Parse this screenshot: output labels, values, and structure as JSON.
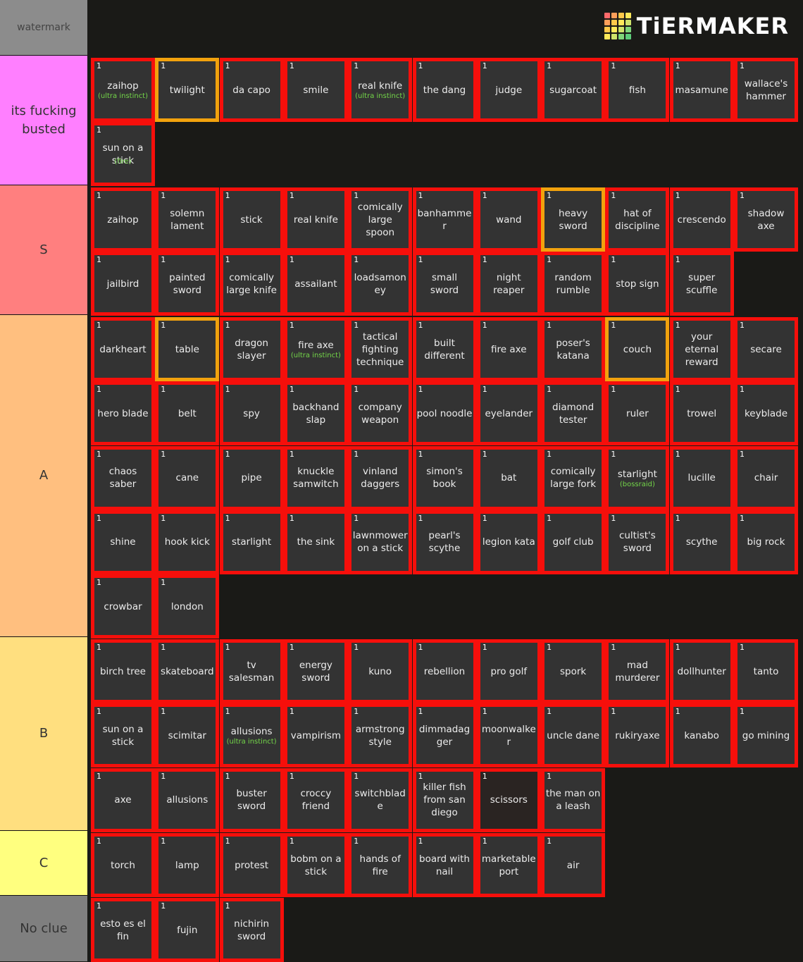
{
  "watermark": "watermark",
  "logo": {
    "text": "TiERMAKER",
    "icon": "tiermaker-grid-icon",
    "grid_colors": [
      "#ff6a6a",
      "#ff9f5a",
      "#ffc94a",
      "#ffe95a",
      "#ff9f5a",
      "#ffc94a",
      "#ffe95a",
      "#cfe36a",
      "#ffc94a",
      "#ffe95a",
      "#cfe36a",
      "#7fd67a",
      "#ffe95a",
      "#cfe36a",
      "#7fd67a",
      "#5ccc7a"
    ]
  },
  "colors": {
    "tile_border": "#f60f0b",
    "tile_gold": "#f2a20d",
    "tile_bg": "#333333",
    "sub_text": "#73d649"
  },
  "tiers": [
    {
      "label": "its fucking busted",
      "color": "#ff7fff",
      "items": [
        {
          "n": "1",
          "name": "zaihop",
          "sub": "(ultra instinct)"
        },
        {
          "n": "1",
          "name": "twilight",
          "gold": true
        },
        {
          "n": "1",
          "name": "da capo"
        },
        {
          "n": "1",
          "name": "smile"
        },
        {
          "n": "1",
          "name": "real knife",
          "sub": "(ultra instinct)"
        },
        {
          "n": "1",
          "name": "the dang"
        },
        {
          "n": "1",
          "name": "judge"
        },
        {
          "n": "1",
          "name": "sugarcoat"
        },
        {
          "n": "1",
          "name": "fish"
        },
        {
          "n": "1",
          "name": "masamune"
        },
        {
          "n": "1",
          "name": "wallace's hammer"
        },
        {
          "n": "1",
          "name": "sun on a stick",
          "ov": "(fire)"
        }
      ]
    },
    {
      "label": "S",
      "color": "#ff7f7f",
      "items": [
        {
          "n": "1",
          "name": "zaihop"
        },
        {
          "n": "1",
          "name": "solemn lament"
        },
        {
          "n": "1",
          "name": "stick"
        },
        {
          "n": "1",
          "name": "real knife"
        },
        {
          "n": "1",
          "name": "comically large spoon"
        },
        {
          "n": "1",
          "name": "banhammer"
        },
        {
          "n": "1",
          "name": "wand"
        },
        {
          "n": "1",
          "name": "heavy sword",
          "gold": true
        },
        {
          "n": "1",
          "name": "hat of discipline"
        },
        {
          "n": "1",
          "name": "crescendo"
        },
        {
          "n": "1",
          "name": "shadow axe"
        },
        {
          "n": "1",
          "name": "jailbird"
        },
        {
          "n": "1",
          "name": "painted sword"
        },
        {
          "n": "1",
          "name": "comically large knife"
        },
        {
          "n": "1",
          "name": "assailant"
        },
        {
          "n": "1",
          "name": "loadsamoney"
        },
        {
          "n": "1",
          "name": "small sword"
        },
        {
          "n": "1",
          "name": "night reaper"
        },
        {
          "n": "1",
          "name": "random rumble"
        },
        {
          "n": "1",
          "name": "stop sign"
        },
        {
          "n": "1",
          "name": "super scuffle"
        }
      ]
    },
    {
      "label": "A",
      "color": "#ffbf7f",
      "items": [
        {
          "n": "1",
          "name": "darkheart"
        },
        {
          "n": "1",
          "name": "table",
          "gold": true
        },
        {
          "n": "1",
          "name": "dragon slayer"
        },
        {
          "n": "1",
          "name": "fire axe",
          "sub": "(ultra instinct)"
        },
        {
          "n": "1",
          "name": "tactical fighting technique"
        },
        {
          "n": "1",
          "name": "built different"
        },
        {
          "n": "1",
          "name": "fire axe"
        },
        {
          "n": "1",
          "name": "poser's katana"
        },
        {
          "n": "1",
          "name": "couch",
          "gold": true
        },
        {
          "n": "1",
          "name": "your eternal reward"
        },
        {
          "n": "1",
          "name": "secare"
        },
        {
          "n": "1",
          "name": "hero blade"
        },
        {
          "n": "1",
          "name": "belt"
        },
        {
          "n": "1",
          "name": "spy"
        },
        {
          "n": "1",
          "name": "backhand slap"
        },
        {
          "n": "1",
          "name": "company weapon"
        },
        {
          "n": "1",
          "name": "pool noodle"
        },
        {
          "n": "1",
          "name": "eyelander"
        },
        {
          "n": "1",
          "name": "diamond tester"
        },
        {
          "n": "1",
          "name": "ruler"
        },
        {
          "n": "1",
          "name": "trowel"
        },
        {
          "n": "1",
          "name": "keyblade"
        },
        {
          "n": "1",
          "name": "chaos saber"
        },
        {
          "n": "1",
          "name": "cane"
        },
        {
          "n": "1",
          "name": "pipe"
        },
        {
          "n": "1",
          "name": "knuckle samwitch"
        },
        {
          "n": "1",
          "name": "vinland daggers"
        },
        {
          "n": "1",
          "name": "simon's book"
        },
        {
          "n": "1",
          "name": "bat"
        },
        {
          "n": "1",
          "name": "comically large fork"
        },
        {
          "n": "1",
          "name": "starlight",
          "sub": "(bossraid)"
        },
        {
          "n": "1",
          "name": "lucille"
        },
        {
          "n": "1",
          "name": "chair"
        },
        {
          "n": "1",
          "name": "shine"
        },
        {
          "n": "1",
          "name": "hook kick"
        },
        {
          "n": "1",
          "name": "starlight"
        },
        {
          "n": "1",
          "name": "the sink"
        },
        {
          "n": "1",
          "name": "lawnmower on a stick"
        },
        {
          "n": "1",
          "name": "pearl's scythe"
        },
        {
          "n": "1",
          "name": "legion kata"
        },
        {
          "n": "1",
          "name": "golf club"
        },
        {
          "n": "1",
          "name": "cultist's sword"
        },
        {
          "n": "1",
          "name": "scythe"
        },
        {
          "n": "1",
          "name": "big rock"
        },
        {
          "n": "1",
          "name": "crowbar"
        },
        {
          "n": "1",
          "name": "london"
        }
      ]
    },
    {
      "label": "B",
      "color": "#ffdf7f",
      "items": [
        {
          "n": "1",
          "name": "birch tree"
        },
        {
          "n": "1",
          "name": "skateboard"
        },
        {
          "n": "1",
          "name": "tv salesman"
        },
        {
          "n": "1",
          "name": "energy sword"
        },
        {
          "n": "1",
          "name": "kuno"
        },
        {
          "n": "1",
          "name": "rebellion"
        },
        {
          "n": "1",
          "name": "pro golf"
        },
        {
          "n": "1",
          "name": "spork"
        },
        {
          "n": "1",
          "name": "mad murderer"
        },
        {
          "n": "1",
          "name": "dollhunter"
        },
        {
          "n": "1",
          "name": "tanto"
        },
        {
          "n": "1",
          "name": "sun on a stick"
        },
        {
          "n": "1",
          "name": "scimitar"
        },
        {
          "n": "1",
          "name": "allusions",
          "sub": "(ultra instinct)"
        },
        {
          "n": "1",
          "name": "vampirism"
        },
        {
          "n": "1",
          "name": "armstrong style"
        },
        {
          "n": "1",
          "name": "dimmadagger"
        },
        {
          "n": "1",
          "name": "moonwalker"
        },
        {
          "n": "1",
          "name": "uncle dane"
        },
        {
          "n": "1",
          "name": "rukiryaxe"
        },
        {
          "n": "1",
          "name": "kanabo"
        },
        {
          "n": "1",
          "name": "go mining"
        },
        {
          "n": "1",
          "name": "axe"
        },
        {
          "n": "1",
          "name": "allusions"
        },
        {
          "n": "1",
          "name": "buster sword"
        },
        {
          "n": "1",
          "name": "croccy friend"
        },
        {
          "n": "1",
          "name": "switchblade"
        },
        {
          "n": "1",
          "name": "killer fish from san diego"
        },
        {
          "n": "1",
          "name": "scissors",
          "dark": true
        },
        {
          "n": "1",
          "name": "the man on a leash"
        }
      ]
    },
    {
      "label": "C",
      "color": "#ffff7f",
      "items": [
        {
          "n": "1",
          "name": "torch"
        },
        {
          "n": "1",
          "name": "lamp"
        },
        {
          "n": "1",
          "name": "protest"
        },
        {
          "n": "1",
          "name": "bobm on a stick"
        },
        {
          "n": "1",
          "name": "hands of fire"
        },
        {
          "n": "1",
          "name": "board with nail"
        },
        {
          "n": "1",
          "name": "marketable port"
        },
        {
          "n": "1",
          "name": "air"
        }
      ]
    },
    {
      "label": "No clue",
      "color": "#7f7f7f",
      "items": [
        {
          "n": "1",
          "name": "esto es el fin"
        },
        {
          "n": "1",
          "name": "fujin"
        },
        {
          "n": "1",
          "name": "nichirin sword"
        }
      ]
    }
  ]
}
